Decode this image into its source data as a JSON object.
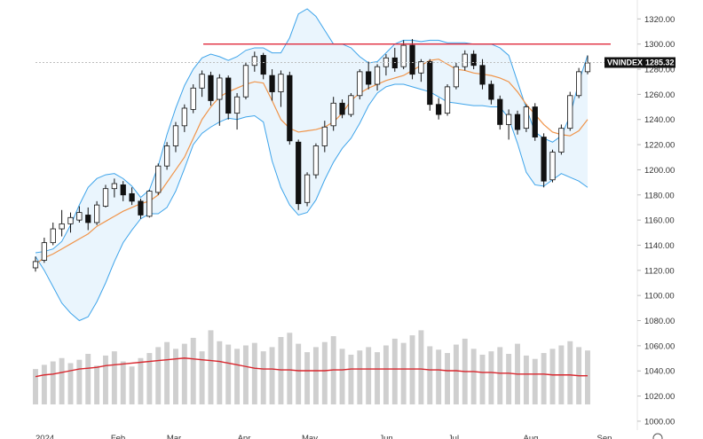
{
  "chart_data": {
    "type": "candlestick",
    "symbol": "VNINDEX",
    "last_price": "1285.32",
    "y_axis": {
      "ylim": [
        995,
        1328
      ],
      "ticks": [
        "1320.00",
        "1300.00",
        "1280.00",
        "1260.00",
        "1240.00",
        "1220.00",
        "1200.00",
        "1180.00",
        "1160.00",
        "1140.00",
        "1120.00",
        "1100.00",
        "1080.00",
        "1060.00",
        "1040.00",
        "1020.00",
        "1000.00"
      ]
    },
    "x_axis": {
      "labels": [
        "2024",
        "Feb",
        "Mar",
        "Apr",
        "May",
        "Jun",
        "Jul",
        "Aug",
        "Sep"
      ]
    },
    "resistance_line": {
      "value": 1300,
      "color": "#e0293b"
    },
    "colors": {
      "bollinger_band": "#3ea4ea",
      "band_fill": "#eaf5fd",
      "moving_average": "#f0954b",
      "volume_bar": "#cfcfcf",
      "volume_ma": "#d8262d",
      "candle": "#111111",
      "crosshair": "#bdbdbd"
    },
    "bollinger_upper": [
      1134,
      1135,
      1137,
      1143,
      1156,
      1172,
      1186,
      1193,
      1196,
      1197,
      1193,
      1187,
      1178,
      1184,
      1203,
      1228,
      1249,
      1267,
      1280,
      1289,
      1292,
      1290,
      1287,
      1290,
      1295,
      1297,
      1297,
      1293,
      1293,
      1305,
      1324,
      1328,
      1322,
      1311,
      1300,
      1300,
      1297,
      1290,
      1285,
      1286,
      1293,
      1300,
      1303,
      1303,
      1302,
      1303,
      1303,
      1301,
      1301,
      1301,
      1300,
      1300,
      1300,
      1297,
      1291,
      1270,
      1249,
      1230,
      1225,
      1222,
      1227,
      1243,
      1270,
      1291
    ],
    "bollinger_lower": [
      1131,
      1120,
      1107,
      1094,
      1086,
      1080,
      1083,
      1095,
      1110,
      1127,
      1142,
      1152,
      1161,
      1165,
      1165,
      1170,
      1183,
      1201,
      1220,
      1229,
      1234,
      1238,
      1241,
      1240,
      1242,
      1243,
      1238,
      1207,
      1186,
      1172,
      1164,
      1166,
      1176,
      1192,
      1206,
      1217,
      1225,
      1237,
      1251,
      1261,
      1266,
      1268,
      1268,
      1266,
      1264,
      1262,
      1258,
      1254,
      1253,
      1252,
      1251,
      1251,
      1250,
      1250,
      1241,
      1221,
      1198,
      1188,
      1187,
      1192,
      1197,
      1194,
      1191,
      1186
    ],
    "moving_average": [
      1125,
      1130,
      1133,
      1137,
      1141,
      1145,
      1149,
      1155,
      1159,
      1163,
      1167,
      1170,
      1173,
      1175,
      1180,
      1190,
      1200,
      1210,
      1225,
      1240,
      1250,
      1258,
      1262,
      1265,
      1268,
      1270,
      1269,
      1255,
      1240,
      1233,
      1230,
      1231,
      1232,
      1234,
      1238,
      1245,
      1255,
      1261,
      1265,
      1268,
      1271,
      1273,
      1275,
      1279,
      1283,
      1287,
      1288,
      1284,
      1280,
      1279,
      1277,
      1276,
      1275,
      1273,
      1270,
      1262,
      1252,
      1244,
      1236,
      1230,
      1228,
      1227,
      1231,
      1240
    ],
    "candles": [
      {
        "o": 1122,
        "h": 1131,
        "l": 1119,
        "c": 1127
      },
      {
        "o": 1128,
        "h": 1146,
        "l": 1126,
        "c": 1142
      },
      {
        "o": 1142,
        "h": 1158,
        "l": 1140,
        "c": 1153
      },
      {
        "o": 1153,
        "h": 1168,
        "l": 1147,
        "c": 1157
      },
      {
        "o": 1157,
        "h": 1166,
        "l": 1150,
        "c": 1162
      },
      {
        "o": 1160,
        "h": 1171,
        "l": 1158,
        "c": 1166
      },
      {
        "o": 1164,
        "h": 1170,
        "l": 1152,
        "c": 1158
      },
      {
        "o": 1158,
        "h": 1175,
        "l": 1156,
        "c": 1172
      },
      {
        "o": 1171,
        "h": 1188,
        "l": 1170,
        "c": 1185
      },
      {
        "o": 1185,
        "h": 1193,
        "l": 1178,
        "c": 1189
      },
      {
        "o": 1188,
        "h": 1191,
        "l": 1175,
        "c": 1180
      },
      {
        "o": 1181,
        "h": 1186,
        "l": 1172,
        "c": 1175
      },
      {
        "o": 1175,
        "h": 1177,
        "l": 1161,
        "c": 1164
      },
      {
        "o": 1163,
        "h": 1184,
        "l": 1162,
        "c": 1183
      },
      {
        "o": 1182,
        "h": 1205,
        "l": 1180,
        "c": 1203
      },
      {
        "o": 1203,
        "h": 1222,
        "l": 1200,
        "c": 1219
      },
      {
        "o": 1219,
        "h": 1238,
        "l": 1214,
        "c": 1235
      },
      {
        "o": 1235,
        "h": 1252,
        "l": 1230,
        "c": 1249
      },
      {
        "o": 1248,
        "h": 1268,
        "l": 1245,
        "c": 1265
      },
      {
        "o": 1265,
        "h": 1279,
        "l": 1258,
        "c": 1276
      },
      {
        "o": 1275,
        "h": 1278,
        "l": 1251,
        "c": 1255
      },
      {
        "o": 1256,
        "h": 1276,
        "l": 1235,
        "c": 1273
      },
      {
        "o": 1273,
        "h": 1275,
        "l": 1240,
        "c": 1245
      },
      {
        "o": 1245,
        "h": 1261,
        "l": 1232,
        "c": 1258
      },
      {
        "o": 1258,
        "h": 1285,
        "l": 1256,
        "c": 1283
      },
      {
        "o": 1283,
        "h": 1294,
        "l": 1278,
        "c": 1290
      },
      {
        "o": 1291,
        "h": 1293,
        "l": 1272,
        "c": 1276
      },
      {
        "o": 1275,
        "h": 1280,
        "l": 1255,
        "c": 1262
      },
      {
        "o": 1262,
        "h": 1279,
        "l": 1250,
        "c": 1276
      },
      {
        "o": 1275,
        "h": 1278,
        "l": 1220,
        "c": 1223
      },
      {
        "o": 1222,
        "h": 1224,
        "l": 1168,
        "c": 1173
      },
      {
        "o": 1174,
        "h": 1198,
        "l": 1171,
        "c": 1196
      },
      {
        "o": 1196,
        "h": 1221,
        "l": 1193,
        "c": 1219
      },
      {
        "o": 1219,
        "h": 1239,
        "l": 1214,
        "c": 1234
      },
      {
        "o": 1235,
        "h": 1258,
        "l": 1231,
        "c": 1253
      },
      {
        "o": 1253,
        "h": 1256,
        "l": 1241,
        "c": 1244
      },
      {
        "o": 1244,
        "h": 1261,
        "l": 1242,
        "c": 1259
      },
      {
        "o": 1259,
        "h": 1280,
        "l": 1256,
        "c": 1278
      },
      {
        "o": 1278,
        "h": 1286,
        "l": 1264,
        "c": 1268
      },
      {
        "o": 1268,
        "h": 1284,
        "l": 1263,
        "c": 1282
      },
      {
        "o": 1282,
        "h": 1292,
        "l": 1275,
        "c": 1289
      },
      {
        "o": 1289,
        "h": 1297,
        "l": 1278,
        "c": 1281
      },
      {
        "o": 1282,
        "h": 1303,
        "l": 1280,
        "c": 1299
      },
      {
        "o": 1299,
        "h": 1304,
        "l": 1272,
        "c": 1276
      },
      {
        "o": 1277,
        "h": 1288,
        "l": 1270,
        "c": 1286
      },
      {
        "o": 1286,
        "h": 1288,
        "l": 1247,
        "c": 1252
      },
      {
        "o": 1252,
        "h": 1257,
        "l": 1240,
        "c": 1244
      },
      {
        "o": 1245,
        "h": 1268,
        "l": 1243,
        "c": 1266
      },
      {
        "o": 1266,
        "h": 1285,
        "l": 1264,
        "c": 1282
      },
      {
        "o": 1282,
        "h": 1295,
        "l": 1279,
        "c": 1292
      },
      {
        "o": 1292,
        "h": 1295,
        "l": 1280,
        "c": 1283
      },
      {
        "o": 1283,
        "h": 1288,
        "l": 1264,
        "c": 1268
      },
      {
        "o": 1268,
        "h": 1271,
        "l": 1252,
        "c": 1256
      },
      {
        "o": 1256,
        "h": 1259,
        "l": 1232,
        "c": 1236
      },
      {
        "o": 1236,
        "h": 1248,
        "l": 1224,
        "c": 1244
      },
      {
        "o": 1244,
        "h": 1247,
        "l": 1228,
        "c": 1232
      },
      {
        "o": 1233,
        "h": 1252,
        "l": 1230,
        "c": 1250
      },
      {
        "o": 1250,
        "h": 1253,
        "l": 1223,
        "c": 1226
      },
      {
        "o": 1226,
        "h": 1229,
        "l": 1186,
        "c": 1191
      },
      {
        "o": 1192,
        "h": 1216,
        "l": 1190,
        "c": 1214
      },
      {
        "o": 1214,
        "h": 1236,
        "l": 1212,
        "c": 1233
      },
      {
        "o": 1233,
        "h": 1262,
        "l": 1231,
        "c": 1259
      },
      {
        "o": 1259,
        "h": 1281,
        "l": 1257,
        "c": 1278
      },
      {
        "o": 1278,
        "h": 1291,
        "l": 1276,
        "c": 1285
      }
    ],
    "volume": [
      42,
      47,
      51,
      55,
      49,
      53,
      60,
      46,
      58,
      63,
      51,
      45,
      55,
      61,
      68,
      74,
      66,
      72,
      79,
      63,
      88,
      75,
      71,
      66,
      70,
      73,
      63,
      68,
      80,
      85,
      72,
      62,
      68,
      74,
      81,
      66,
      59,
      64,
      68,
      62,
      70,
      78,
      73,
      82,
      88,
      69,
      65,
      61,
      71,
      78,
      66,
      59,
      63,
      68,
      60,
      72,
      58,
      54,
      61,
      66,
      70,
      75,
      68,
      64
    ],
    "volume_ma": [
      33,
      35,
      36,
      38,
      40,
      42,
      43,
      44,
      46,
      47,
      48,
      49,
      50,
      51,
      52,
      53,
      54,
      55,
      54,
      53,
      52,
      51,
      49,
      47,
      45,
      43,
      42,
      42,
      41,
      41,
      40,
      40,
      40,
      40,
      41,
      41,
      42,
      42,
      42,
      42,
      42,
      42,
      42,
      42,
      42,
      41,
      41,
      40,
      40,
      39,
      39,
      38,
      38,
      37,
      37,
      36,
      36,
      36,
      36,
      35,
      35,
      35,
      34,
      34
    ]
  }
}
